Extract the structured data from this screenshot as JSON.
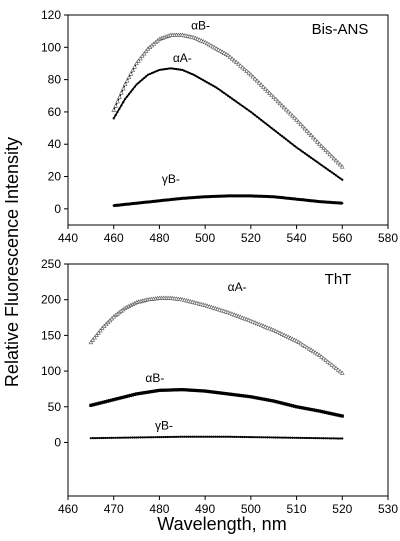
{
  "ylabel": "Relative Fluorescence Intensity",
  "xlabel": "Wavelength, nm",
  "chart_data": [
    {
      "type": "line",
      "panel_label": "Bis-ANS",
      "xlim": [
        440,
        580
      ],
      "ylim": [
        -10,
        120
      ],
      "xticks": [
        440,
        460,
        480,
        500,
        520,
        540,
        560,
        580
      ],
      "yticks": [
        0,
        20,
        40,
        60,
        80,
        100,
        120
      ],
      "grid": false,
      "series": [
        {
          "name": "αB-",
          "marker": "triangle-open",
          "line_width": 1.2,
          "label_x": 498,
          "label_y": 111,
          "x": [
            460,
            465,
            470,
            475,
            480,
            485,
            490,
            495,
            500,
            505,
            510,
            520,
            530,
            540,
            550,
            560
          ],
          "y": [
            61,
            77,
            90,
            99,
            105,
            107.5,
            107.5,
            106,
            103,
            99,
            95,
            83,
            69,
            55,
            40,
            26
          ]
        },
        {
          "name": "αA-",
          "marker": "dot",
          "line_width": 1.6,
          "label_x": 490,
          "label_y": 91,
          "x": [
            460,
            465,
            470,
            475,
            480,
            485,
            490,
            495,
            500,
            505,
            510,
            520,
            530,
            540,
            550,
            560
          ],
          "y": [
            56,
            68,
            77,
            83,
            86,
            87,
            86,
            83,
            79,
            75,
            70,
            60,
            49,
            38,
            28,
            18
          ]
        },
        {
          "name": "γB-",
          "marker": "dot",
          "line_width": 3,
          "label_x": 485,
          "label_y": 16,
          "x": [
            460,
            470,
            480,
            490,
            500,
            510,
            520,
            530,
            540,
            550,
            560
          ],
          "y": [
            2,
            3.5,
            5,
            6.5,
            7.5,
            8,
            8,
            7.5,
            6,
            4.5,
            3.5
          ]
        }
      ]
    },
    {
      "type": "line",
      "panel_label": "ThT",
      "xlim": [
        460,
        530
      ],
      "ylim": [
        -75,
        250
      ],
      "xticks": [
        460,
        470,
        480,
        490,
        500,
        510,
        520,
        530
      ],
      "yticks": [
        0,
        50,
        100,
        150,
        200,
        250
      ],
      "grid": false,
      "series": [
        {
          "name": "αA-",
          "marker": "triangle-open",
          "line_width": 1.2,
          "label_x": 497,
          "label_y": 212,
          "x": [
            465,
            467.5,
            470,
            472.5,
            475,
            477.5,
            480,
            482.5,
            485,
            490,
            495,
            500,
            505,
            510,
            515,
            520
          ],
          "y": [
            140,
            160,
            176,
            188,
            196,
            200,
            202,
            202,
            200,
            192,
            182,
            170,
            157,
            142,
            122,
            97
          ]
        },
        {
          "name": "αB-",
          "marker": "square",
          "line_width": 1.5,
          "label_x": 479,
          "label_y": 85,
          "x": [
            465,
            470,
            475,
            480,
            485,
            490,
            495,
            500,
            505,
            510,
            515,
            520
          ],
          "y": [
            52,
            60,
            68,
            73,
            74,
            72,
            68,
            64,
            58,
            50,
            44,
            37
          ]
        },
        {
          "name": "γB-",
          "marker": "dot",
          "line_width": 1.2,
          "label_x": 481,
          "label_y": 18,
          "x": [
            465,
            470,
            475,
            480,
            485,
            490,
            495,
            500,
            505,
            510,
            515,
            520
          ],
          "y": [
            6,
            6.5,
            7,
            7.5,
            8,
            8,
            8,
            7.5,
            7,
            6.5,
            6,
            5.5
          ]
        }
      ]
    }
  ]
}
